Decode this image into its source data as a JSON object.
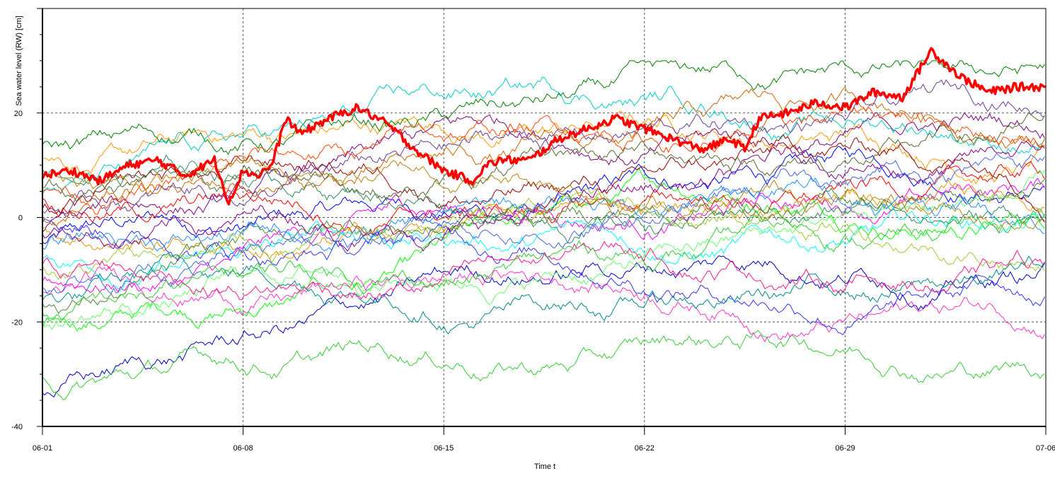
{
  "chart_data": {
    "type": "line",
    "title": "",
    "xlabel": "Time t",
    "ylabel": "Sea water level (RW) [cm]",
    "x_ticks": [
      "06-01",
      "06-08",
      "06-15",
      "06-22",
      "06-29",
      "07-06"
    ],
    "y_ticks": [
      -40,
      -20,
      0,
      20
    ],
    "xlim": [
      0,
      35
    ],
    "ylim": [
      -40,
      40
    ],
    "grid": true,
    "legend": "none",
    "x_unit": "days from 06-01",
    "highlighted_series": {
      "color": "#ff0000",
      "x": [
        0,
        1,
        2,
        3,
        4,
        5,
        6,
        6.5,
        7,
        7.5,
        8,
        8.5,
        9,
        10,
        11,
        12,
        13,
        14,
        15,
        15.5,
        16,
        17,
        18,
        19,
        20,
        21,
        22,
        22.5,
        23,
        24,
        24.5,
        25,
        26,
        27,
        28,
        29,
        30,
        31,
        32,
        33,
        34,
        35
      ],
      "y": [
        8,
        9,
        7,
        10,
        11,
        8,
        11,
        3,
        9,
        8,
        10,
        19,
        16,
        19,
        21,
        18,
        13,
        9,
        7,
        10,
        11,
        11,
        15,
        17,
        19,
        17,
        15,
        14,
        13,
        15,
        13,
        19,
        20,
        22,
        21,
        24,
        23,
        32,
        27,
        24,
        25,
        25
      ]
    },
    "background_series": [
      {
        "color": "#0000ff"
      },
      {
        "color": "#00ff00"
      },
      {
        "color": "#ff9900"
      },
      {
        "color": "#ff00ff"
      },
      {
        "color": "#00ffff"
      },
      {
        "color": "#008000"
      },
      {
        "color": "#800080"
      },
      {
        "color": "#ff0000"
      },
      {
        "color": "#0000cc"
      },
      {
        "color": "#33cc33"
      },
      {
        "color": "#e69500"
      },
      {
        "color": "#4b8b3b"
      },
      {
        "color": "#ff33cc"
      },
      {
        "color": "#00cccc"
      },
      {
        "color": "#990000"
      },
      {
        "color": "#3333ff"
      },
      {
        "color": "#66ff66"
      },
      {
        "color": "#cc6600"
      },
      {
        "color": "#6a3d9a"
      },
      {
        "color": "#2e8b57"
      },
      {
        "color": "#1e90ff"
      },
      {
        "color": "#ff4500"
      },
      {
        "color": "#9acd32"
      },
      {
        "color": "#8b008b"
      },
      {
        "color": "#008b8b"
      },
      {
        "color": "#b8860b"
      },
      {
        "color": "#556b2f"
      },
      {
        "color": "#ff1493"
      },
      {
        "color": "#4169e1"
      },
      {
        "color": "#32cd32"
      }
    ]
  }
}
